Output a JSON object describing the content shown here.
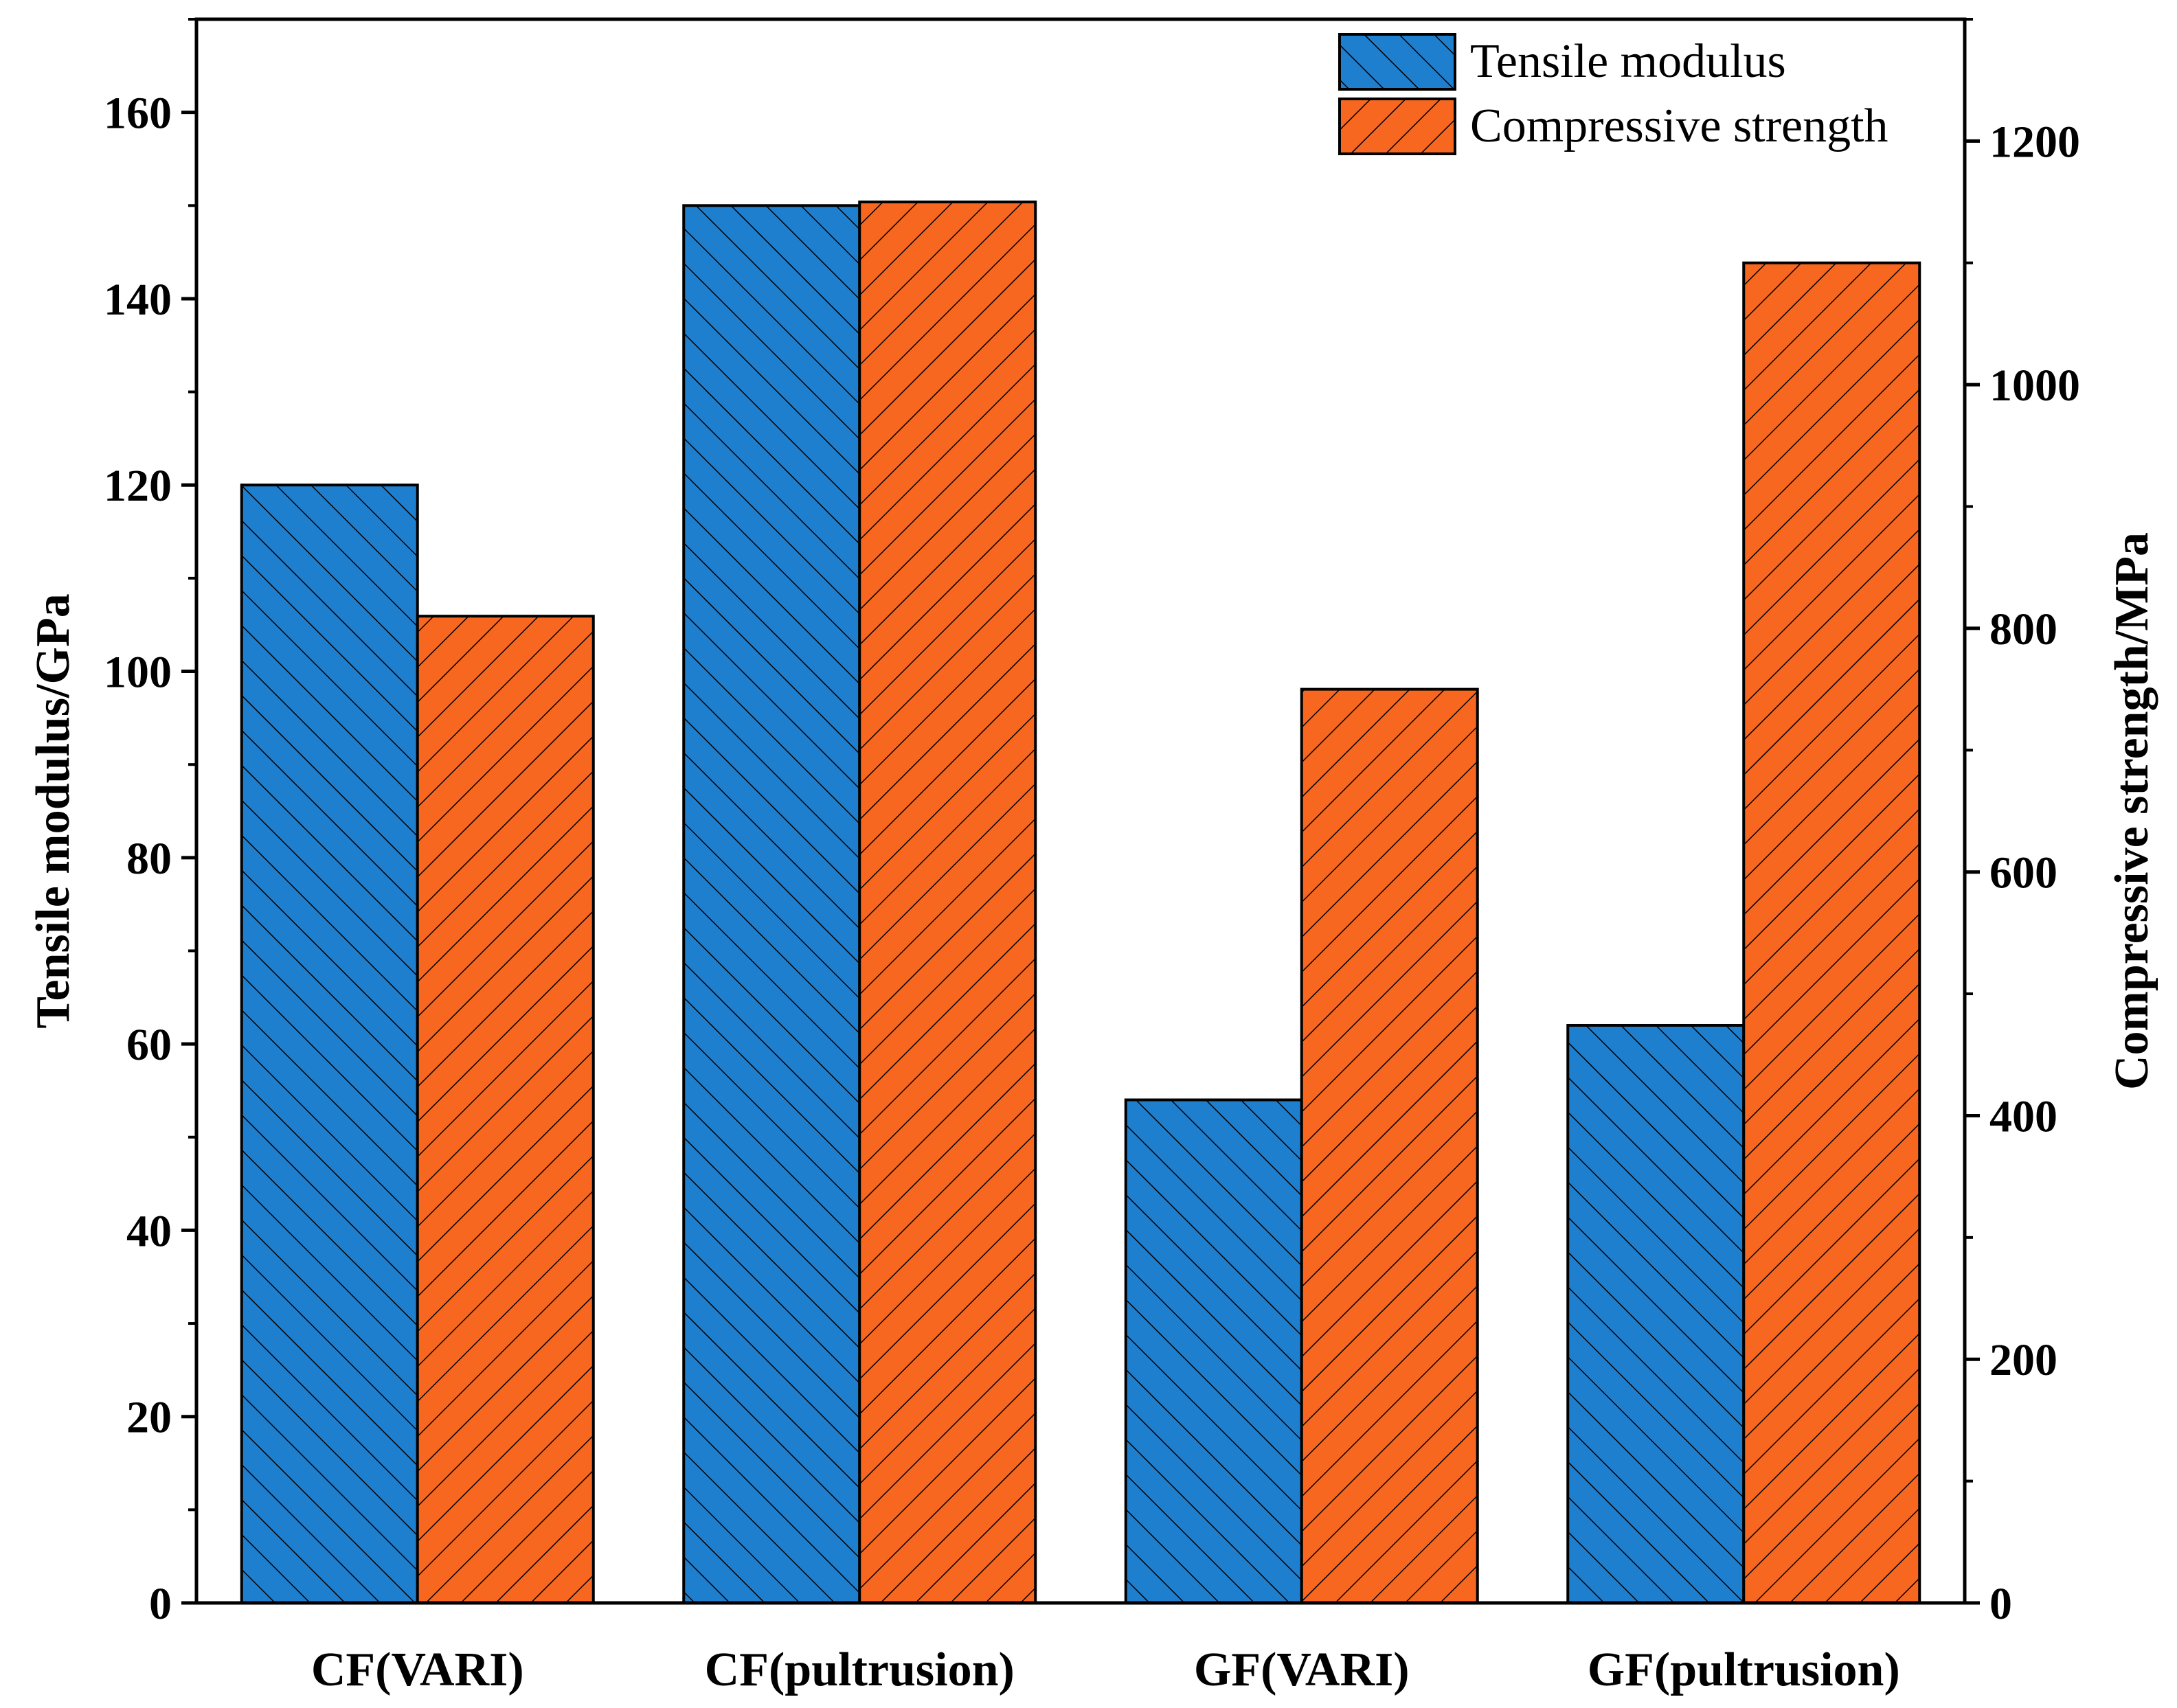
{
  "chart_data": {
    "type": "bar",
    "categories": [
      "CF(VARI)",
      "CF(pultrusion)",
      "GF(VARI)",
      "GF(pultrusion)"
    ],
    "series": [
      {
        "name": "Tensile modulus",
        "axis": "left",
        "color": "#1f7fcf",
        "hatch": "backslash",
        "values": [
          120,
          150,
          54,
          62
        ]
      },
      {
        "name": "Compressive strength",
        "axis": "right",
        "color": "#f8671f",
        "hatch": "slash",
        "values": [
          810,
          1150,
          750,
          1100
        ]
      }
    ],
    "ylabel": "Tensile modulus/GPa",
    "ylabel_right": "Compressive strength/MPa",
    "ylim": [
      0,
      170
    ],
    "ylim_right": [
      0,
      1300
    ],
    "yticks": [
      0,
      20,
      40,
      60,
      80,
      100,
      120,
      140,
      160
    ],
    "yticks_right": [
      0,
      200,
      400,
      600,
      800,
      1000,
      1200
    ],
    "legend_position": "top-right",
    "grid": false
  }
}
